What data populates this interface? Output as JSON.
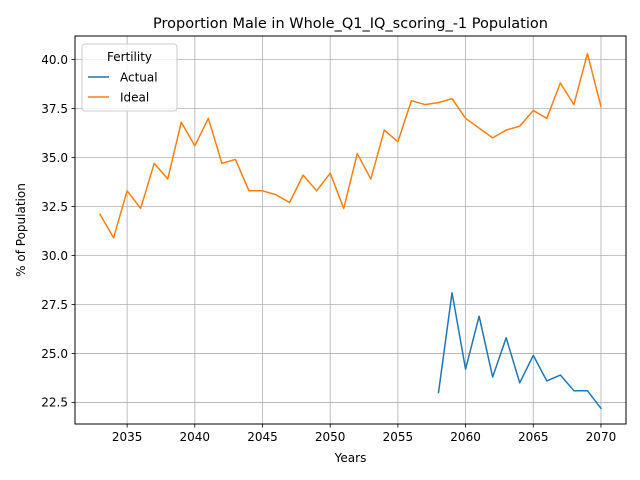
{
  "chart_data": {
    "type": "line",
    "title": "Proportion Male in Whole_Q1_IQ_scoring_-1 Population",
    "xlabel": "Years",
    "ylabel": "% of Population",
    "xlim": [
      2031.15,
      2071.85
    ],
    "ylim": [
      21.4,
      41.2
    ],
    "xticks": [
      2035,
      2040,
      2045,
      2050,
      2055,
      2060,
      2065,
      2070
    ],
    "yticks": [
      22.5,
      25.0,
      27.5,
      30.0,
      32.5,
      35.0,
      37.5,
      40.0
    ],
    "ytick_labels": [
      "22.5",
      "25.0",
      "27.5",
      "30.0",
      "32.5",
      "35.0",
      "37.5",
      "40.0"
    ],
    "grid": true,
    "legend": {
      "title": "Fertility",
      "placement": "top-left"
    },
    "series": [
      {
        "name": "Actual",
        "color": "#1f77b4",
        "x": [
          2058,
          2059,
          2060,
          2061,
          2062,
          2063,
          2064,
          2065,
          2066,
          2067,
          2068,
          2069,
          2070
        ],
        "y": [
          23.0,
          28.1,
          24.2,
          26.9,
          23.8,
          25.8,
          23.5,
          24.9,
          23.6,
          23.9,
          23.1,
          23.1,
          22.2
        ]
      },
      {
        "name": "Ideal",
        "color": "#ff7f0e",
        "x": [
          2033,
          2034,
          2035,
          2036,
          2037,
          2038,
          2039,
          2040,
          2041,
          2042,
          2043,
          2044,
          2045,
          2046,
          2047,
          2048,
          2049,
          2050,
          2051,
          2052,
          2053,
          2054,
          2055,
          2056,
          2057,
          2058,
          2059,
          2060,
          2061,
          2062,
          2063,
          2064,
          2065,
          2066,
          2067,
          2068,
          2069,
          2070
        ],
        "y": [
          32.1,
          30.9,
          33.3,
          32.4,
          34.7,
          33.9,
          36.8,
          35.6,
          37.0,
          34.7,
          34.9,
          33.3,
          33.3,
          33.1,
          32.7,
          34.1,
          33.3,
          34.2,
          32.4,
          35.2,
          33.9,
          36.4,
          35.8,
          37.9,
          37.7,
          37.8,
          38.0,
          37.0,
          36.5,
          36.0,
          36.4,
          36.6,
          37.4,
          37.0,
          38.8,
          37.7,
          40.3,
          37.6
        ]
      }
    ]
  }
}
